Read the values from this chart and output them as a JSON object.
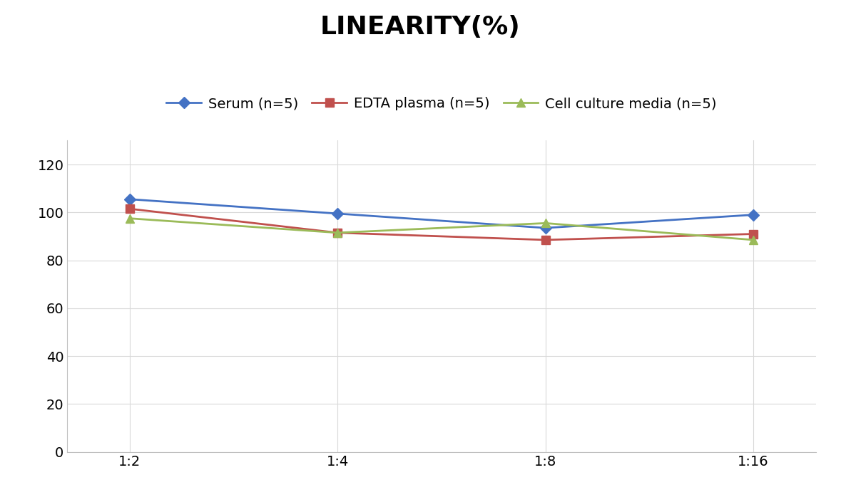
{
  "title": "LINEARITY(%)",
  "title_fontsize": 26,
  "title_fontweight": "bold",
  "x_labels": [
    "1:2",
    "1:4",
    "1:8",
    "1:16"
  ],
  "x_positions": [
    0,
    1,
    2,
    3
  ],
  "series": [
    {
      "label": "Serum (n=5)",
      "values": [
        105.5,
        99.5,
        93.5,
        99.0
      ],
      "color": "#4472C4",
      "marker": "D",
      "markersize": 8,
      "linewidth": 2.0
    },
    {
      "label": "EDTA plasma (n=5)",
      "values": [
        101.5,
        91.5,
        88.5,
        91.0
      ],
      "color": "#C0504D",
      "marker": "s",
      "markersize": 8,
      "linewidth": 2.0
    },
    {
      "label": "Cell culture media (n=5)",
      "values": [
        97.5,
        91.5,
        95.5,
        88.5
      ],
      "color": "#9BBB59",
      "marker": "^",
      "markersize": 8,
      "linewidth": 2.0
    }
  ],
  "ylim": [
    0,
    130
  ],
  "yticks": [
    0,
    20,
    40,
    60,
    80,
    100,
    120
  ],
  "grid_color": "#D9D9D9",
  "background_color": "#FFFFFF",
  "legend_fontsize": 14,
  "tick_fontsize": 14,
  "spine_color": "#BFBFBF"
}
